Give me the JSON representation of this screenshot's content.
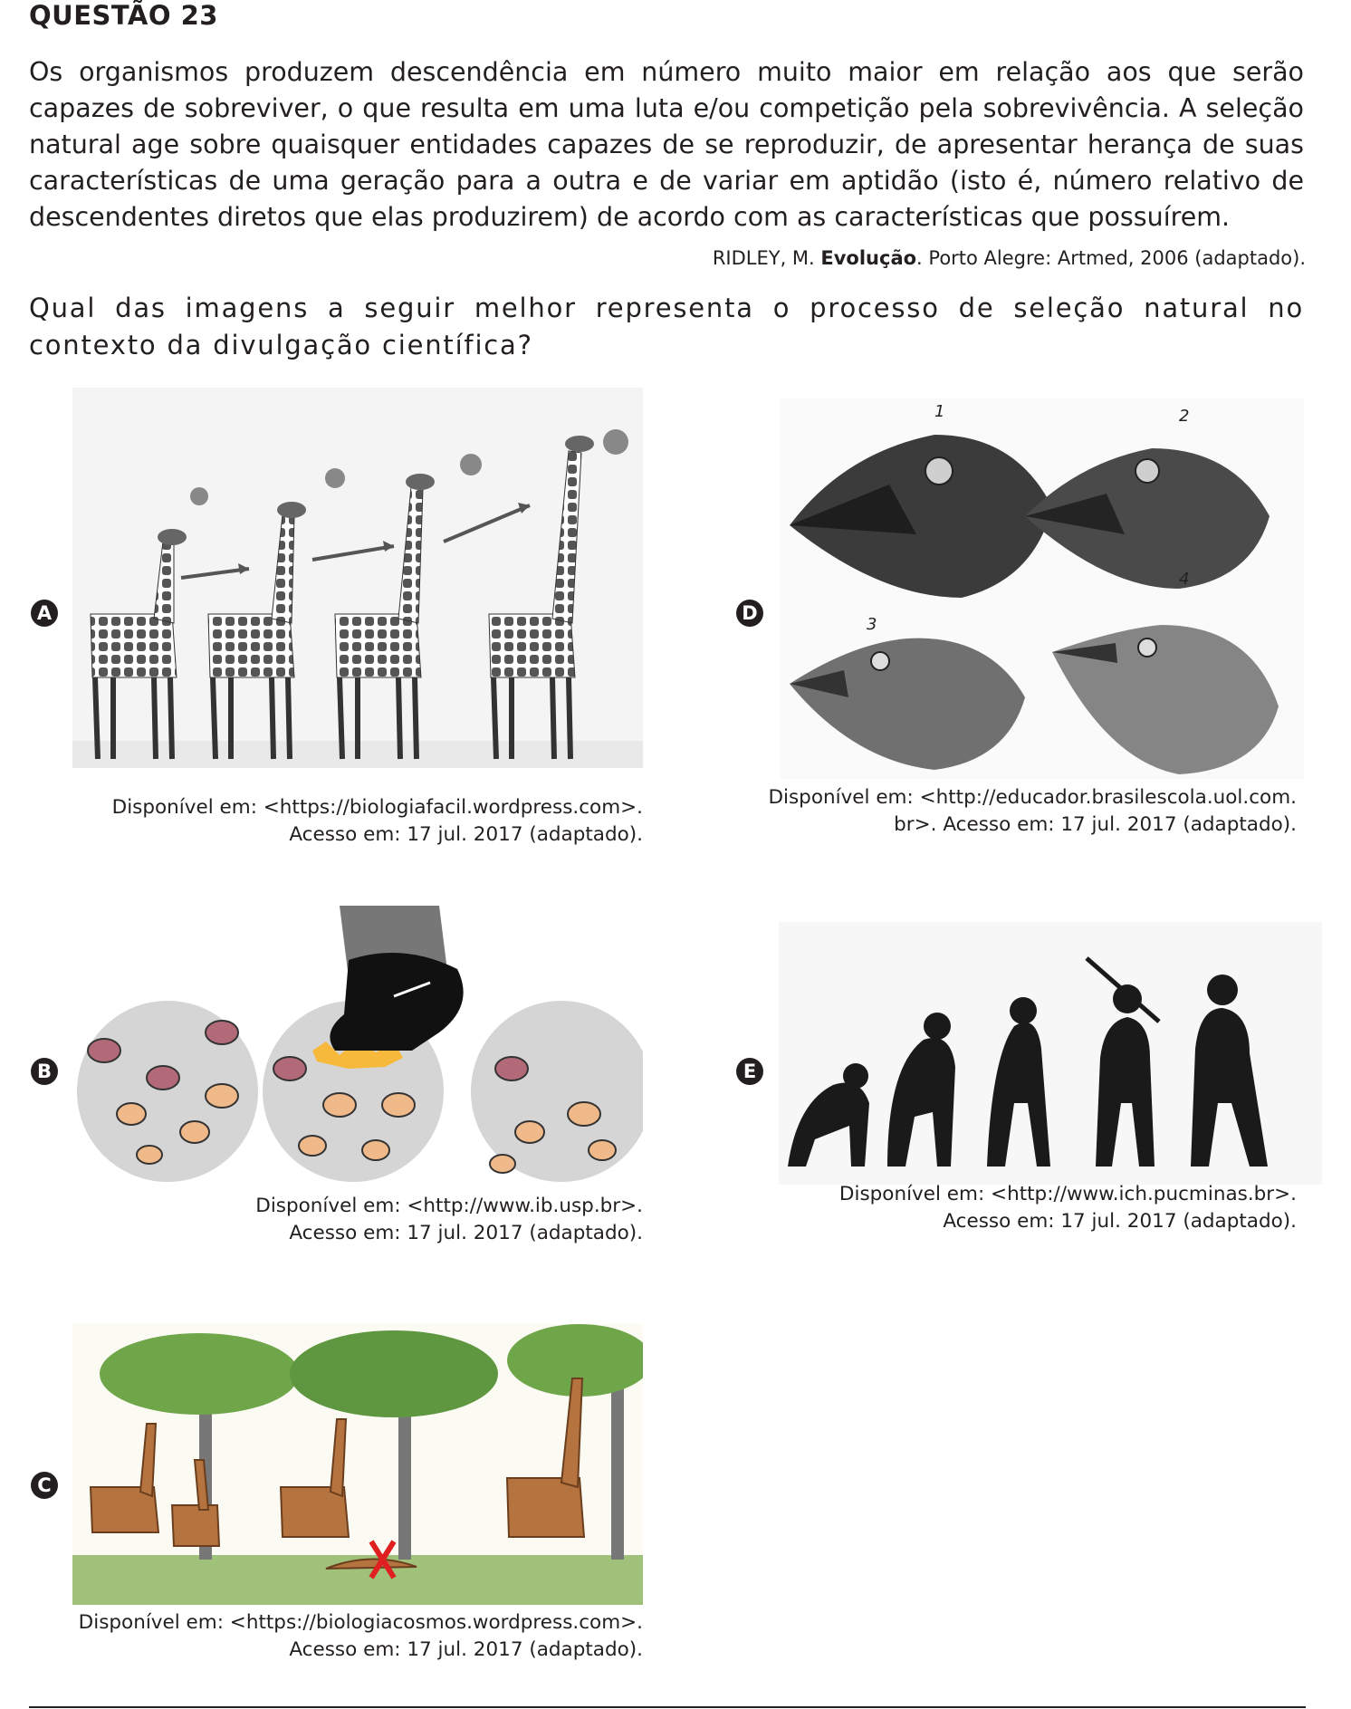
{
  "header": {
    "title": "QUESTÃO 23"
  },
  "text": {
    "paragraph": "Os organismos produzem descendência em número muito maior em relação aos que serão capazes de sobreviver, o que resulta em uma luta e/ou competição pela sobrevivência. A seleção natural age sobre quaisquer entidades capazes de se reproduzir, de apresentar herança de suas características de uma geração para a outra e de variar em aptidão (isto é, número relativo de descendentes diretos que elas produzirem) de acordo com as características que possuírem.",
    "reference_author": "RIDLEY, M. ",
    "reference_title": "Evolução",
    "reference_rest": ". Porto Alegre: Artmed, 2006 (adaptado).",
    "question": "Qual das imagens a seguir melhor representa o processo de seleção natural no contexto da divulgação científica?"
  },
  "options": {
    "a": {
      "letter": "A",
      "caption_line1": "Disponível em: <https://biologiafacil.wordpress.com>.",
      "caption_line2": "Acesso em: 17 jul. 2017 (adaptado)."
    },
    "b": {
      "letter": "B",
      "caption_line1": "Disponível em: <http://www.ib.usp.br>.",
      "caption_line2": "Acesso em: 17 jul. 2017 (adaptado)."
    },
    "c": {
      "letter": "C",
      "caption_line1": "Disponível em: <https://biologiacosmos.wordpress.com>.",
      "caption_line2": "Acesso em: 17 jul. 2017 (adaptado)."
    },
    "d": {
      "letter": "D",
      "caption_line1": "Disponível em: <http://educador.brasilescola.uol.com.",
      "caption_line2": "br>. Acesso em: 17 jul. 2017 (adaptado).",
      "labels": [
        "1",
        "2",
        "3",
        "4"
      ]
    },
    "e": {
      "letter": "E",
      "caption_line1": "Disponível em: <http://www.ich.pucminas.br>.",
      "caption_line2": "Acesso em: 17 jul. 2017 (adaptado)."
    }
  },
  "colors": {
    "text": "#231f20",
    "beetle_orange": "#f0b98a",
    "beetle_red": "#b26a78",
    "grass": "#9fc17a",
    "tree": "#6fa64a",
    "giraffe": "#b5733f"
  }
}
